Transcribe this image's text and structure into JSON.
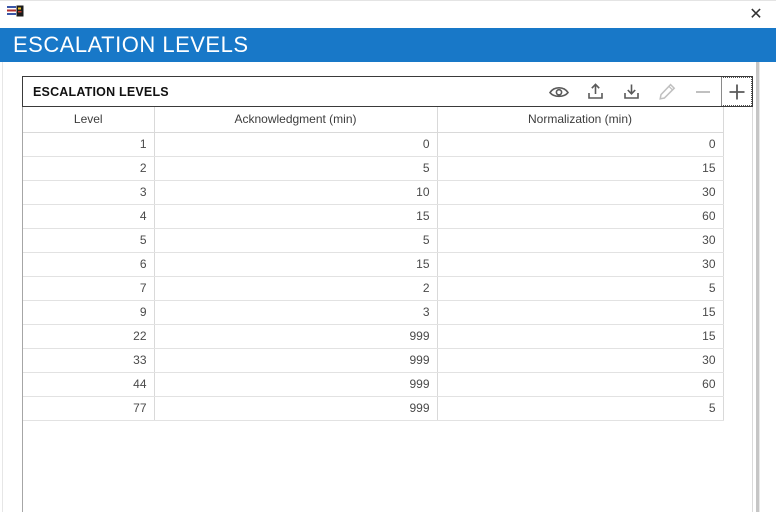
{
  "window": {
    "close_glyph": "✕",
    "app_icon": "escalation-app-icon"
  },
  "banner": {
    "title": "ESCALATION LEVELS",
    "color": "#1878c8",
    "text_color": "#ffffff"
  },
  "panel": {
    "title": "ESCALATION LEVELS",
    "toolbar": {
      "icons": [
        {
          "name": "view",
          "glyph": "eye-icon",
          "disabled": false
        },
        {
          "name": "import",
          "glyph": "upload-icon",
          "disabled": false
        },
        {
          "name": "export",
          "glyph": "download-icon",
          "disabled": false
        },
        {
          "name": "edit",
          "glyph": "pencil-icon",
          "disabled": true
        },
        {
          "name": "remove",
          "glyph": "minus-icon",
          "disabled": true
        },
        {
          "name": "add",
          "glyph": "plus-icon",
          "disabled": false,
          "focused": true
        }
      ],
      "enabled_color": "#5a5a5a",
      "disabled_color": "#c0c0c0"
    }
  },
  "chart_data": {
    "type": "table",
    "title": "ESCALATION LEVELS",
    "columns": [
      "Level",
      "Acknowledgment (min)",
      "Normalization (min)"
    ],
    "rows": [
      [
        1,
        0,
        0
      ],
      [
        2,
        5,
        15
      ],
      [
        3,
        10,
        30
      ],
      [
        4,
        15,
        60
      ],
      [
        5,
        5,
        30
      ],
      [
        6,
        15,
        30
      ],
      [
        7,
        2,
        5
      ],
      [
        9,
        3,
        15
      ],
      [
        22,
        999,
        15
      ],
      [
        33,
        999,
        30
      ],
      [
        44,
        999,
        60
      ],
      [
        77,
        999,
        5
      ]
    ]
  }
}
